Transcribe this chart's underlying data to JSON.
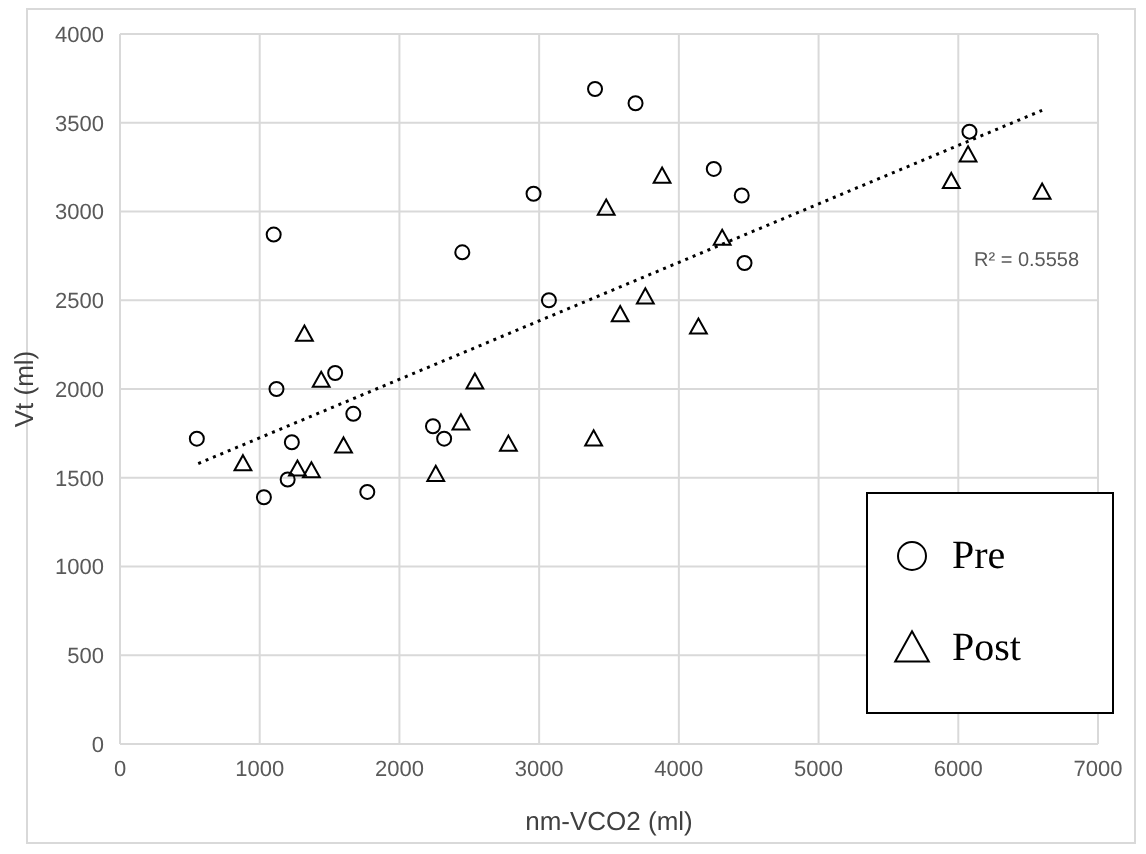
{
  "chart_data": {
    "type": "scatter",
    "xlabel": "nm-VCO2 (ml)",
    "ylabel": "Vt (ml)",
    "xlim": [
      0,
      7000
    ],
    "xticks": [
      0,
      1000,
      2000,
      3000,
      4000,
      5000,
      6000,
      7000
    ],
    "ylim": [
      0,
      4000
    ],
    "yticks": [
      0,
      500,
      1000,
      1500,
      2000,
      2500,
      3000,
      3500,
      4000
    ],
    "grid": true,
    "legend": "bottom right",
    "annotations": [
      "R² = 0.5558"
    ],
    "series": [
      {
        "name": "Pre",
        "color": "#000000",
        "marker": "circle",
        "x": [
          550,
          1030,
          1100,
          1120,
          1200,
          1230,
          1540,
          1670,
          1770,
          2240,
          2320,
          2450,
          2960,
          3070,
          3400,
          3690,
          4250,
          4450,
          4470,
          6080
        ],
        "values": [
          1720,
          1390,
          2870,
          2000,
          1490,
          1700,
          2090,
          1860,
          1420,
          1790,
          1720,
          2770,
          3100,
          2500,
          3690,
          3610,
          3240,
          3090,
          2710,
          3450
        ]
      },
      {
        "name": "Post",
        "color": "#000000",
        "marker": "triangle",
        "x": [
          880,
          1270,
          1320,
          1370,
          1440,
          1600,
          2260,
          2440,
          2540,
          2780,
          3390,
          3480,
          3580,
          3760,
          3880,
          4140,
          4310,
          5950,
          6070,
          6600
        ],
        "values": [
          1580,
          1550,
          2310,
          1540,
          2050,
          1680,
          1520,
          1810,
          2040,
          1690,
          1720,
          3020,
          2420,
          2520,
          3200,
          2350,
          2850,
          3170,
          3320,
          3110
        ]
      },
      {
        "type": "line",
        "color": "#000000",
        "line_style": "dotted",
        "marker": "none",
        "x": [
          560,
          6600
        ],
        "values": [
          1580,
          3570
        ]
      }
    ]
  }
}
